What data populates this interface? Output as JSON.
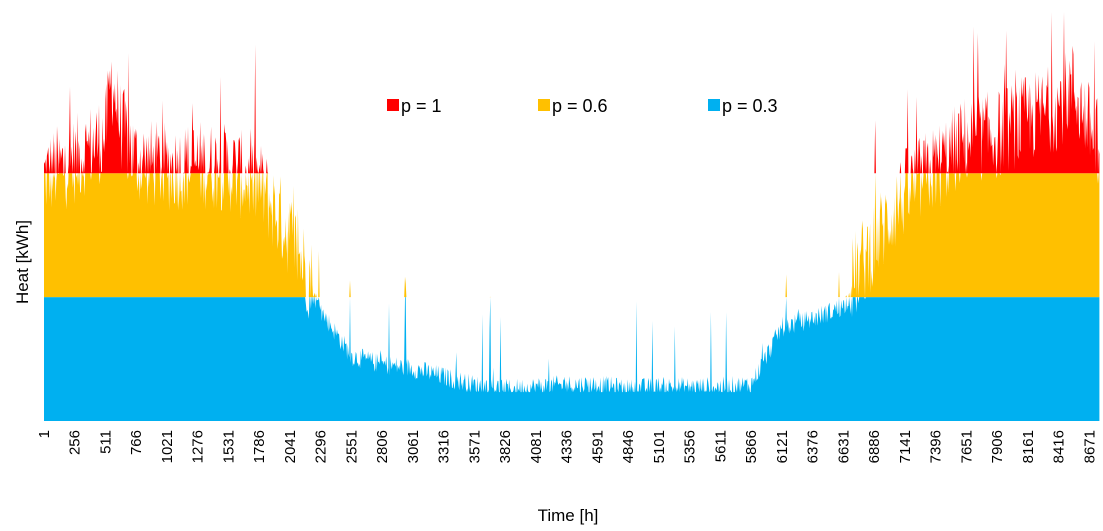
{
  "chart_data": {
    "type": "area",
    "xlabel": "Time [h]",
    "ylabel": "Heat [kWh]",
    "xlim": [
      1,
      8760
    ],
    "ylim": [
      0,
      1
    ],
    "grid": false,
    "legend_position": "top-center",
    "x_tick_labels": [
      "1",
      "256",
      "511",
      "766",
      "1021",
      "1276",
      "1531",
      "1786",
      "2041",
      "2296",
      "2551",
      "2806",
      "3061",
      "3316",
      "3571",
      "3826",
      "4081",
      "4336",
      "4591",
      "4846",
      "5101",
      "5356",
      "5611",
      "5866",
      "6121",
      "6376",
      "6631",
      "6886",
      "7141",
      "7396",
      "7651",
      "7906",
      "8161",
      "8416",
      "8671"
    ],
    "x_ticks": [
      1,
      256,
      511,
      766,
      1021,
      1276,
      1531,
      1786,
      2041,
      2296,
      2551,
      2806,
      3061,
      3316,
      3571,
      3826,
      4081,
      4336,
      4591,
      4846,
      5101,
      5356,
      5611,
      5866,
      6121,
      6376,
      6631,
      6886,
      7141,
      7396,
      7651,
      7906,
      8161,
      8416,
      8671
    ],
    "caps": {
      "p = 0.3": 0.3,
      "p = 0.6": 0.6
    },
    "series": [
      {
        "name": "p = 1",
        "color": "#ff0000"
      },
      {
        "name": "p = 0.6",
        "color": "#ffc000"
      },
      {
        "name": "p = 0.3",
        "color": "#00b0f0"
      }
    ],
    "demand_profile": {
      "x": [
        1,
        256,
        511,
        560,
        640,
        766,
        1021,
        1276,
        1531,
        1786,
        2041,
        2296,
        2551,
        2806,
        3061,
        3316,
        3571,
        3826,
        4081,
        4336,
        4591,
        4846,
        5101,
        5356,
        5611,
        5866,
        6121,
        6376,
        6631,
        6886,
        7141,
        7396,
        7651,
        7906,
        8161,
        8416,
        8530,
        8671,
        8760
      ],
      "y": [
        0.56,
        0.6,
        0.66,
        0.8,
        0.68,
        0.6,
        0.58,
        0.59,
        0.58,
        0.54,
        0.42,
        0.26,
        0.15,
        0.13,
        0.12,
        0.1,
        0.08,
        0.07,
        0.075,
        0.08,
        0.08,
        0.07,
        0.075,
        0.075,
        0.075,
        0.08,
        0.22,
        0.24,
        0.27,
        0.4,
        0.52,
        0.58,
        0.65,
        0.66,
        0.7,
        0.73,
        0.78,
        0.68,
        0.64
      ]
    }
  }
}
